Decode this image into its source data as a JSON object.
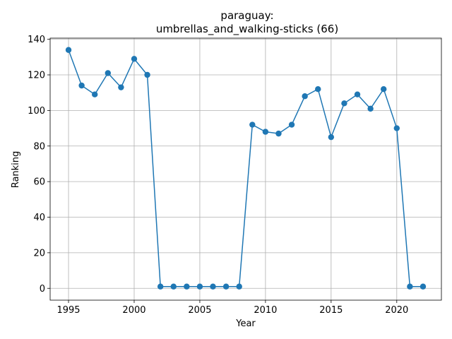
{
  "chart_data": {
    "type": "line",
    "title_line1": "paraguay:",
    "title_line2": "umbrellas_and_walking-sticks (66)",
    "xlabel": "Year",
    "ylabel": "Ranking",
    "xlim": [
      1993.6,
      2023.4
    ],
    "ylim": [
      -6.65,
      140.65
    ],
    "xticks": [
      1995,
      2000,
      2005,
      2010,
      2015,
      2020
    ],
    "yticks": [
      0,
      20,
      40,
      60,
      80,
      100,
      120,
      140
    ],
    "grid": true,
    "color": "#1f77b4",
    "x": [
      1995,
      1996,
      1997,
      1998,
      1999,
      2000,
      2001,
      2002,
      2003,
      2004,
      2005,
      2006,
      2007,
      2008,
      2009,
      2010,
      2011,
      2012,
      2013,
      2014,
      2015,
      2016,
      2017,
      2018,
      2019,
      2020,
      2021,
      2022
    ],
    "y": [
      134,
      114,
      109,
      121,
      113,
      129,
      120,
      1,
      1,
      1,
      1,
      1,
      1,
      1,
      92,
      88,
      87,
      92,
      108,
      112,
      85,
      104,
      109,
      101,
      112,
      90,
      1,
      1
    ]
  }
}
